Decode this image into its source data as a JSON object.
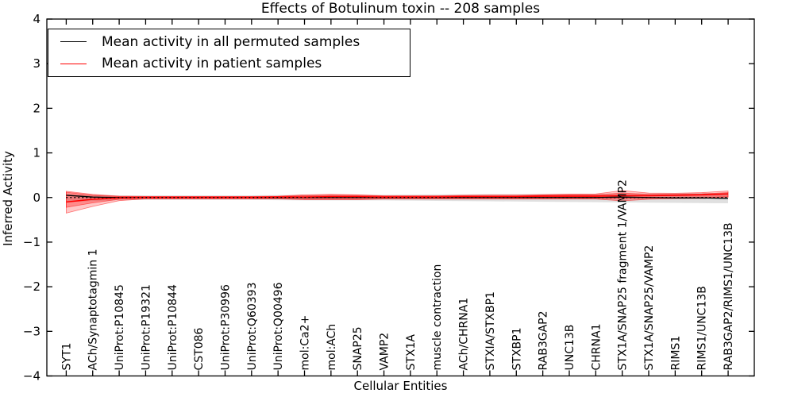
{
  "chart_data": {
    "type": "line",
    "title": "Effects of Botulinum toxin -- 208 samples",
    "xlabel": "Cellular Entities",
    "ylabel": "Inferred Activity",
    "ylim": [
      -4,
      4
    ],
    "yticks": [
      4,
      3,
      2,
      1,
      0,
      -1,
      -2,
      -3,
      -4
    ],
    "grid": false,
    "legend_position": "upper left",
    "categories": [
      "SYT1",
      "ACh/Synaptotagmin 1",
      "UniProt:P10845",
      "UniProt:P19321",
      "UniProt:P10844",
      "CST086",
      "UniProt:P30996",
      "UniProt:Q60393",
      "UniProt:Q00496",
      "mol:Ca2+",
      "mol:ACh",
      "SNAP25",
      "VAMP2",
      "STX1A",
      "muscle contraction",
      "ACh/CHRNA1",
      "STXIA/STXBP1",
      "STXBP1",
      "RAB3GAP2",
      "UNC13B",
      "CHRNA1",
      "STX1A/SNAP25 fragment 1/VAMP2",
      "STX1A/SNAP25/VAMP2",
      "RIMS1",
      "RIMS1/UNC13B",
      "RAB3GAP2/RIMS1/UNC13B"
    ],
    "legend": [
      {
        "label": "Mean activity in all permuted samples",
        "color": "#000000"
      },
      {
        "label": "Mean activity in patient samples",
        "color": "#ff0000"
      }
    ],
    "series": [
      {
        "name": "Mean activity in all permuted samples",
        "color": "#000000",
        "width": 1.3,
        "values": [
          0.05,
          0.01,
          0,
          0,
          0,
          0,
          0,
          0,
          0,
          0,
          0,
          0,
          0,
          0,
          0,
          0,
          0,
          0,
          0,
          0,
          0,
          0.01,
          0,
          -0.01,
          -0.01,
          -0.02
        ]
      },
      {
        "name": "Mean activity in patient samples",
        "color": "#ff0000",
        "width": 1.6,
        "values": [
          -0.1,
          -0.04,
          -0.01,
          0,
          0,
          0,
          0,
          0,
          0.01,
          0.01,
          0.02,
          0.02,
          0.01,
          0.01,
          0.01,
          0.02,
          0.02,
          0.02,
          0.03,
          0.03,
          0.03,
          0.04,
          0.04,
          0.05,
          0.06,
          0.08
        ]
      }
    ],
    "bands": [
      {
        "name": "permuted-samples-band",
        "color": "#999999",
        "alpha": 0.3,
        "upper": [
          0.07,
          0.06,
          0.05,
          0.05,
          0.05,
          0.05,
          0.05,
          0.05,
          0.055,
          0.06,
          0.06,
          0.06,
          0.06,
          0.065,
          0.07,
          0.07,
          0.075,
          0.075,
          0.08,
          0.08,
          0.085,
          0.09,
          0.09,
          0.095,
          0.1,
          0.105
        ],
        "lower": [
          -0.1,
          -0.08,
          -0.06,
          -0.055,
          -0.055,
          -0.055,
          -0.055,
          -0.055,
          -0.06,
          -0.065,
          -0.065,
          -0.065,
          -0.065,
          -0.07,
          -0.075,
          -0.08,
          -0.085,
          -0.09,
          -0.095,
          -0.1,
          -0.105,
          -0.11,
          -0.115,
          -0.12,
          -0.125,
          -0.13
        ]
      },
      {
        "name": "patient-samples-band-outer",
        "color": "#ff0000",
        "alpha": 0.22,
        "upper": [
          0.14,
          0.07,
          0.03,
          0.025,
          0.025,
          0.025,
          0.025,
          0.025,
          0.03,
          0.06,
          0.07,
          0.06,
          0.04,
          0.04,
          0.04,
          0.05,
          0.055,
          0.055,
          0.065,
          0.075,
          0.08,
          0.155,
          0.1,
          0.095,
          0.11,
          0.145
        ],
        "lower": [
          -0.35,
          -0.2,
          -0.07,
          -0.03,
          -0.03,
          -0.03,
          -0.03,
          -0.03,
          -0.03,
          -0.05,
          -0.05,
          -0.05,
          -0.035,
          -0.035,
          -0.035,
          -0.035,
          -0.035,
          -0.035,
          -0.035,
          -0.035,
          -0.035,
          -0.075,
          -0.04,
          -0.025,
          -0.02,
          0.0
        ],
        "edge": true
      },
      {
        "name": "patient-samples-band-inner",
        "color": "#ff0000",
        "alpha": 0.3,
        "upper": [
          0.12,
          0.05,
          0.02,
          0.02,
          0.02,
          0.02,
          0.02,
          0.02,
          0.02,
          0.04,
          0.05,
          0.05,
          0.03,
          0.03,
          0.03,
          0.04,
          0.04,
          0.04,
          0.05,
          0.06,
          0.06,
          0.1,
          0.07,
          0.07,
          0.08,
          0.11
        ],
        "lower": [
          -0.22,
          -0.12,
          -0.04,
          -0.02,
          -0.02,
          -0.02,
          -0.02,
          -0.02,
          -0.02,
          -0.03,
          -0.03,
          -0.03,
          -0.02,
          -0.02,
          -0.02,
          -0.02,
          -0.02,
          -0.02,
          -0.02,
          -0.02,
          -0.02,
          -0.04,
          -0.02,
          -0.01,
          -0.01,
          0.02
        ],
        "edge": true
      }
    ],
    "zero_line": {
      "value": 0,
      "color": "#000000",
      "style": "dotted"
    }
  }
}
